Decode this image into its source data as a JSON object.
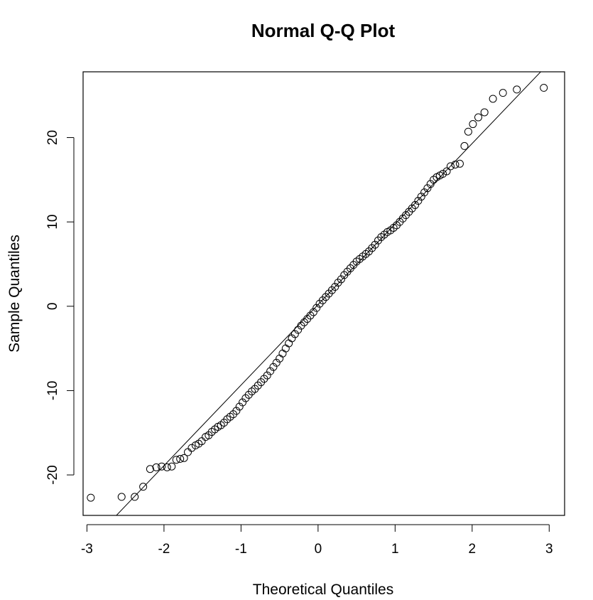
{
  "chart_data": {
    "type": "scatter",
    "title": "Normal Q-Q Plot",
    "xlabel": "Theoretical Quantiles",
    "ylabel": "Sample Quantiles",
    "xlim": [
      -3.05,
      3.2
    ],
    "ylim": [
      -24.8,
      27.8
    ],
    "x_ticks": [
      -3,
      -2,
      -1,
      0,
      1,
      2,
      3
    ],
    "x_tick_labels": [
      "-3",
      "-2",
      "-1",
      "0",
      "1",
      "2",
      "3"
    ],
    "y_ticks": [
      -20,
      -10,
      0,
      10,
      20
    ],
    "y_tick_labels": [
      "-20",
      "-10",
      "0",
      "10",
      "20"
    ],
    "reference_line": {
      "type": "qqline",
      "slope": 9.55,
      "intercept": 0.2
    },
    "grid": false,
    "legend": "none",
    "marker": "open-circle",
    "points": [
      [
        -2.95,
        -22.7
      ],
      [
        -2.55,
        -22.6
      ],
      [
        -2.38,
        -22.6
      ],
      [
        -2.27,
        -21.4
      ],
      [
        -2.18,
        -19.3
      ],
      [
        -2.1,
        -19.1
      ],
      [
        -2.03,
        -19.0
      ],
      [
        -1.96,
        -19.1
      ],
      [
        -1.9,
        -19.0
      ],
      [
        -1.84,
        -18.2
      ],
      [
        -1.79,
        -18.1
      ],
      [
        -1.74,
        -18.0
      ],
      [
        -1.69,
        -17.3
      ],
      [
        -1.64,
        -16.8
      ],
      [
        -1.59,
        -16.5
      ],
      [
        -1.55,
        -16.3
      ],
      [
        -1.51,
        -16.0
      ],
      [
        -1.46,
        -15.5
      ],
      [
        -1.42,
        -15.3
      ],
      [
        -1.38,
        -14.9
      ],
      [
        -1.34,
        -14.6
      ],
      [
        -1.3,
        -14.3
      ],
      [
        -1.26,
        -14.1
      ],
      [
        -1.22,
        -13.8
      ],
      [
        -1.18,
        -13.4
      ],
      [
        -1.14,
        -13.1
      ],
      [
        -1.1,
        -12.8
      ],
      [
        -1.06,
        -12.4
      ],
      [
        -1.02,
        -11.9
      ],
      [
        -0.98,
        -11.4
      ],
      [
        -0.94,
        -10.9
      ],
      [
        -0.9,
        -10.5
      ],
      [
        -0.86,
        -10.1
      ],
      [
        -0.82,
        -9.8
      ],
      [
        -0.78,
        -9.4
      ],
      [
        -0.74,
        -9.0
      ],
      [
        -0.7,
        -8.6
      ],
      [
        -0.66,
        -8.2
      ],
      [
        -0.62,
        -7.7
      ],
      [
        -0.58,
        -7.2
      ],
      [
        -0.54,
        -6.7
      ],
      [
        -0.5,
        -6.2
      ],
      [
        -0.46,
        -5.6
      ],
      [
        -0.42,
        -5.0
      ],
      [
        -0.38,
        -4.4
      ],
      [
        -0.34,
        -3.8
      ],
      [
        -0.3,
        -3.3
      ],
      [
        -0.26,
        -2.8
      ],
      [
        -0.22,
        -2.3
      ],
      [
        -0.18,
        -1.9
      ],
      [
        -0.14,
        -1.5
      ],
      [
        -0.1,
        -1.1
      ],
      [
        -0.06,
        -0.7
      ],
      [
        -0.02,
        -0.2
      ],
      [
        0.02,
        0.3
      ],
      [
        0.06,
        0.7
      ],
      [
        0.1,
        1.1
      ],
      [
        0.14,
        1.5
      ],
      [
        0.18,
        1.9
      ],
      [
        0.22,
        2.3
      ],
      [
        0.26,
        2.8
      ],
      [
        0.3,
        3.2
      ],
      [
        0.34,
        3.7
      ],
      [
        0.38,
        4.1
      ],
      [
        0.42,
        4.5
      ],
      [
        0.46,
        4.9
      ],
      [
        0.5,
        5.3
      ],
      [
        0.54,
        5.6
      ],
      [
        0.58,
        5.9
      ],
      [
        0.62,
        6.2
      ],
      [
        0.66,
        6.5
      ],
      [
        0.7,
        6.9
      ],
      [
        0.74,
        7.3
      ],
      [
        0.78,
        7.8
      ],
      [
        0.82,
        8.2
      ],
      [
        0.86,
        8.5
      ],
      [
        0.9,
        8.8
      ],
      [
        0.94,
        9.0
      ],
      [
        0.98,
        9.3
      ],
      [
        1.02,
        9.6
      ],
      [
        1.06,
        10.0
      ],
      [
        1.1,
        10.4
      ],
      [
        1.14,
        10.8
      ],
      [
        1.18,
        11.2
      ],
      [
        1.22,
        11.6
      ],
      [
        1.26,
        12.0
      ],
      [
        1.3,
        12.5
      ],
      [
        1.34,
        13.0
      ],
      [
        1.38,
        13.5
      ],
      [
        1.42,
        14.0
      ],
      [
        1.46,
        14.5
      ],
      [
        1.5,
        15.0
      ],
      [
        1.54,
        15.3
      ],
      [
        1.58,
        15.5
      ],
      [
        1.62,
        15.7
      ],
      [
        1.67,
        16.0
      ],
      [
        1.72,
        16.6
      ],
      [
        1.78,
        16.8
      ],
      [
        1.84,
        16.9
      ],
      [
        1.9,
        19.0
      ],
      [
        1.95,
        20.7
      ],
      [
        2.01,
        21.6
      ],
      [
        2.08,
        22.4
      ],
      [
        2.16,
        23.0
      ],
      [
        2.27,
        24.6
      ],
      [
        2.4,
        25.3
      ],
      [
        2.58,
        25.7
      ],
      [
        2.93,
        25.9
      ]
    ]
  }
}
